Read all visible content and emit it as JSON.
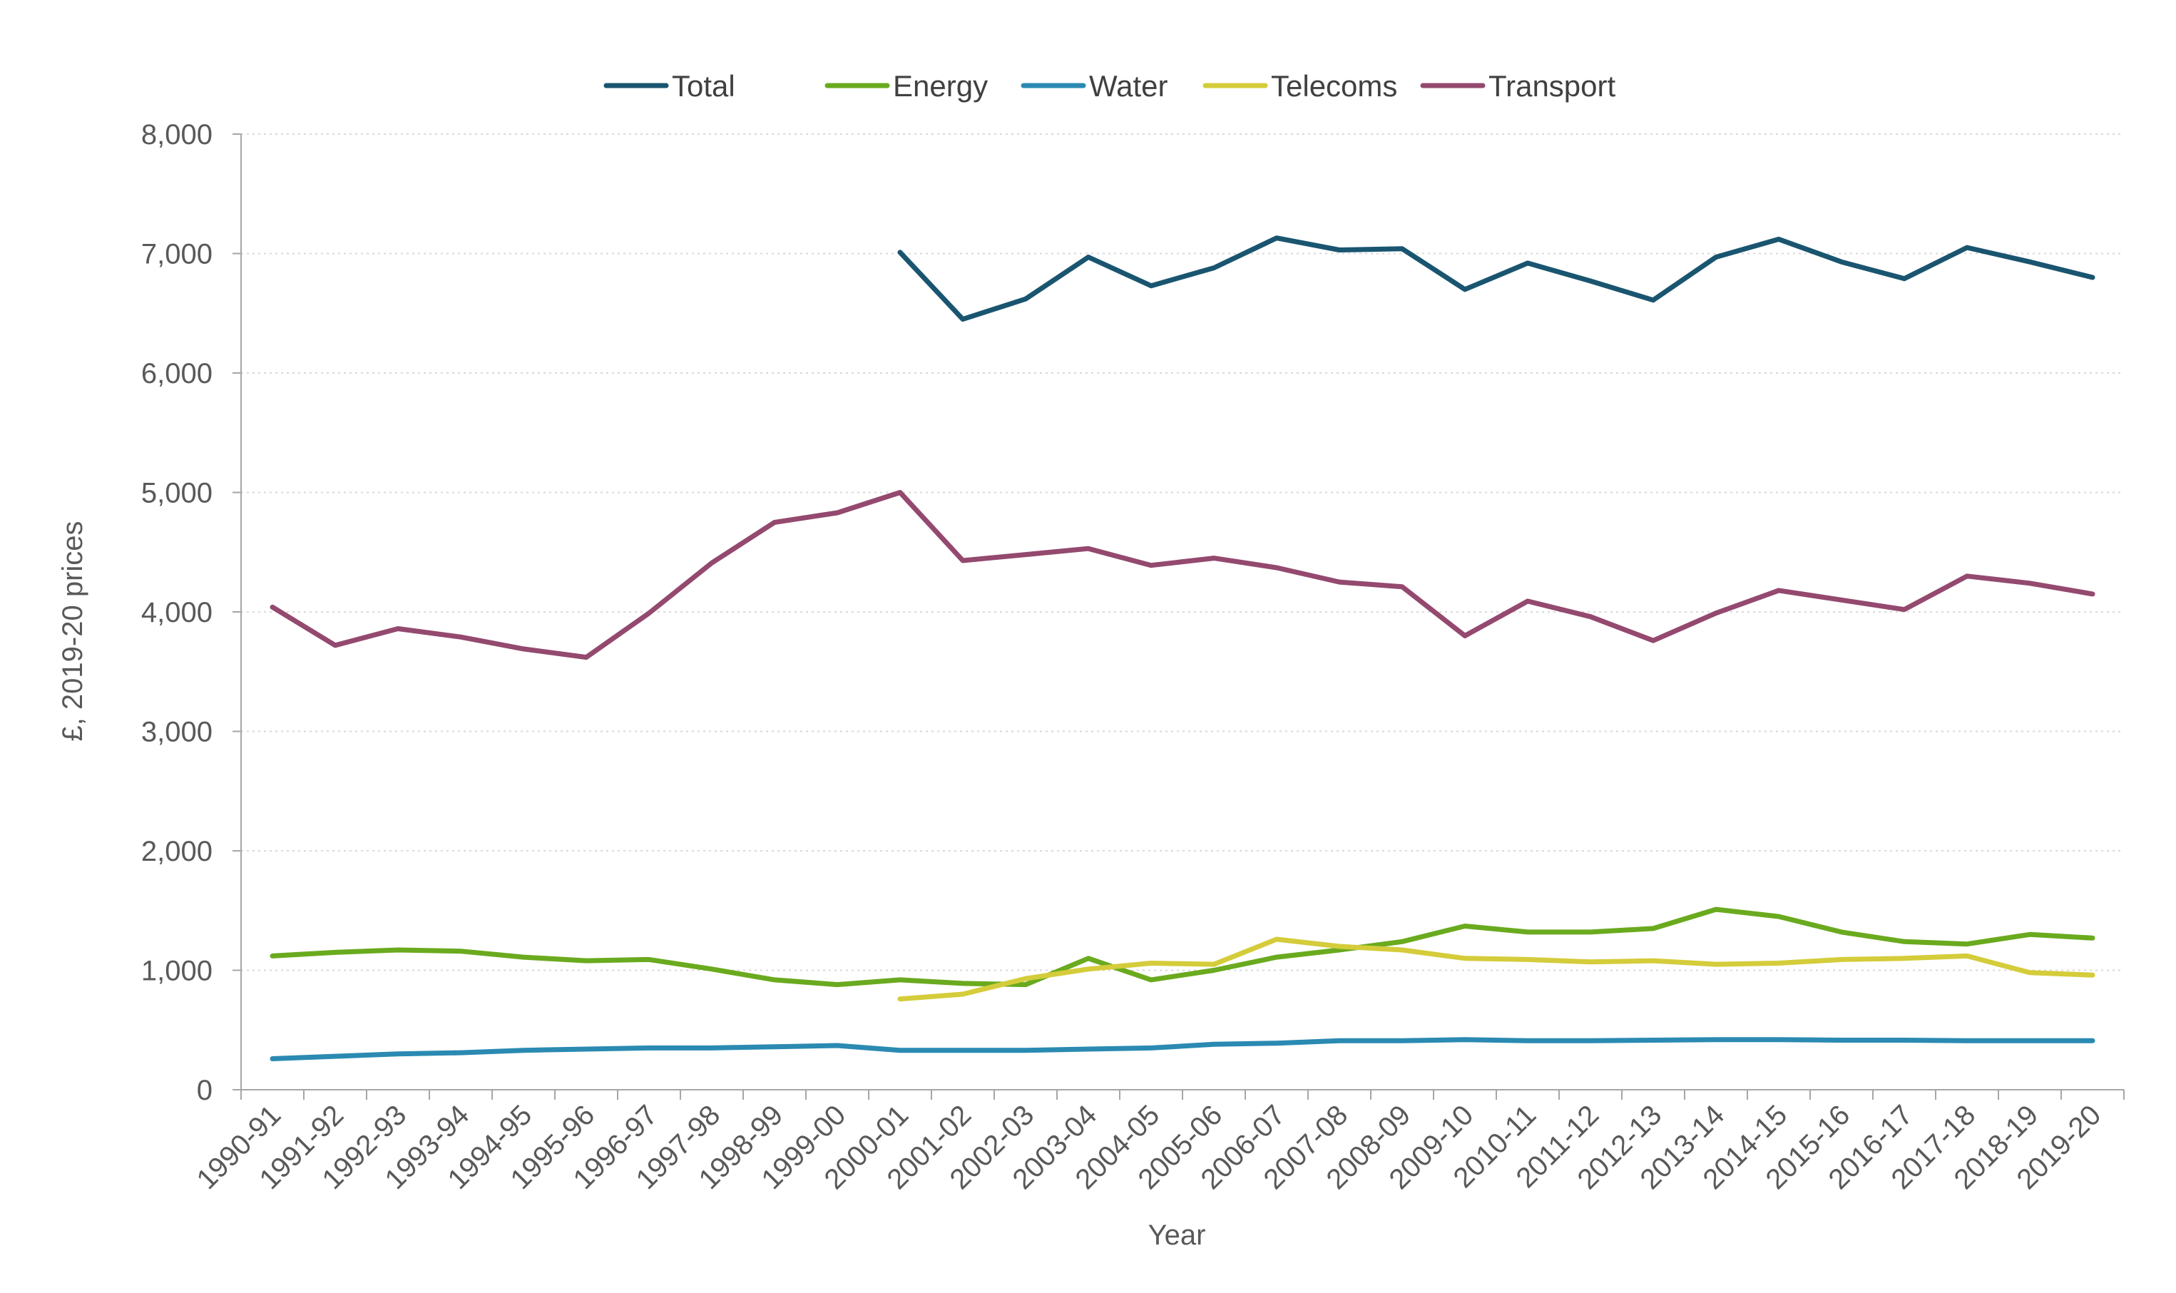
{
  "chart_data": {
    "type": "line",
    "title": "",
    "xlabel": "Year",
    "ylabel": "£, 2019-20 prices",
    "ylim": [
      0,
      8000
    ],
    "y_ticks": [
      0,
      1000,
      2000,
      3000,
      4000,
      5000,
      6000,
      7000,
      8000
    ],
    "y_tick_labels": [
      "0",
      "1,000",
      "2,000",
      "3,000",
      "4,000",
      "5,000",
      "6,000",
      "7,000",
      "8,000"
    ],
    "grid": "horizontal dotted",
    "legend_position": "top-center",
    "categories": [
      "1990-91",
      "1991-92",
      "1992-93",
      "1993-94",
      "1994-95",
      "1995-96",
      "1996-97",
      "1997-98",
      "1998-99",
      "1999-00",
      "2000-01",
      "2001-02",
      "2002-03",
      "2003-04",
      "2004-05",
      "2005-06",
      "2006-07",
      "2007-08",
      "2008-09",
      "2009-10",
      "2010-11",
      "2011-12",
      "2012-13",
      "2013-14",
      "2014-15",
      "2015-16",
      "2016-17",
      "2017-18",
      "2018-19",
      "2019-20"
    ],
    "series": [
      {
        "name": "Total",
        "color": "#1a5570",
        "values": [
          null,
          null,
          null,
          null,
          null,
          null,
          null,
          null,
          null,
          null,
          7010,
          6450,
          6620,
          6970,
          6730,
          6880,
          7130,
          7030,
          7040,
          6700,
          6920,
          6770,
          6610,
          6970,
          7120,
          6930,
          6790,
          7050,
          6930,
          6800
        ]
      },
      {
        "name": "Energy",
        "color": "#6aaa1e",
        "values": [
          1120,
          1150,
          1170,
          1160,
          1110,
          1080,
          1090,
          1010,
          920,
          880,
          920,
          890,
          880,
          1100,
          920,
          1000,
          1110,
          1170,
          1240,
          1370,
          1320,
          1320,
          1350,
          1510,
          1450,
          1320,
          1240,
          1220,
          1300,
          1270
        ]
      },
      {
        "name": "Water",
        "color": "#2a8ab2",
        "values": [
          260,
          280,
          300,
          310,
          330,
          340,
          350,
          350,
          360,
          370,
          330,
          330,
          330,
          340,
          350,
          380,
          390,
          410,
          410,
          420,
          410,
          410,
          415,
          420,
          420,
          415,
          415,
          410,
          410,
          410
        ]
      },
      {
        "name": "Telecoms",
        "color": "#d4cc3a",
        "values": [
          null,
          null,
          null,
          null,
          null,
          null,
          null,
          null,
          null,
          null,
          760,
          800,
          930,
          1010,
          1060,
          1050,
          1260,
          1200,
          1170,
          1100,
          1090,
          1070,
          1080,
          1050,
          1060,
          1090,
          1100,
          1120,
          980,
          960
        ]
      },
      {
        "name": "Transport",
        "color": "#94496f",
        "values": [
          4040,
          3720,
          3860,
          3790,
          3690,
          3620,
          3990,
          4410,
          4750,
          4830,
          5000,
          4430,
          4480,
          4530,
          4390,
          4450,
          4370,
          4250,
          4210,
          3800,
          4090,
          3960,
          3760,
          3990,
          4180,
          4100,
          4020,
          4300,
          4240,
          4150
        ]
      }
    ]
  }
}
